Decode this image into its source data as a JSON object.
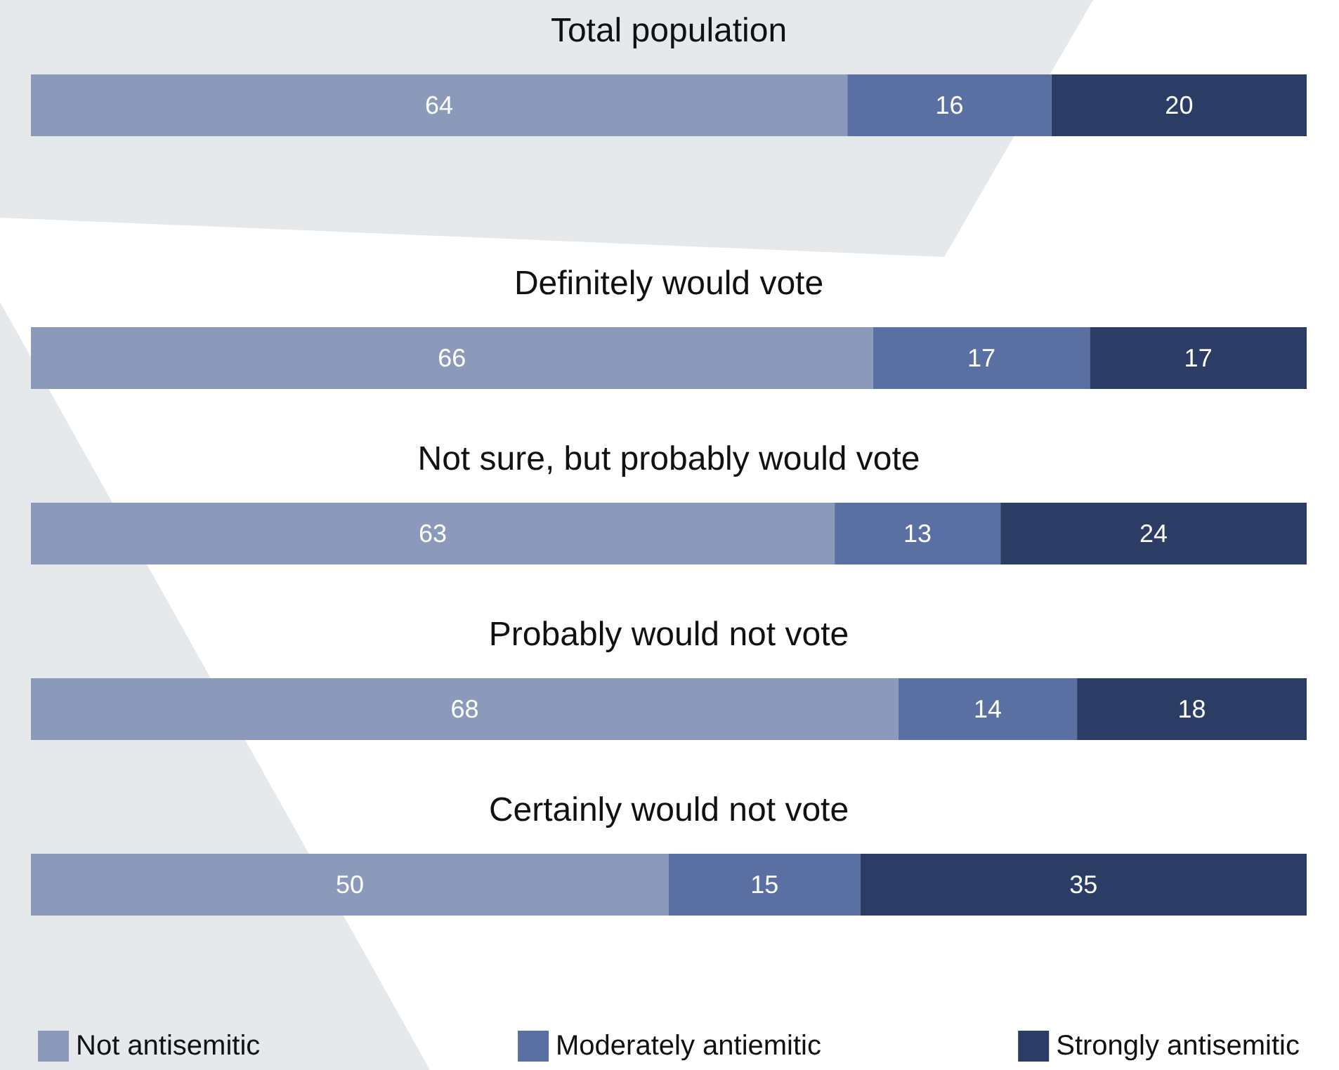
{
  "chart_data": {
    "type": "bar",
    "orientation": "horizontal",
    "stacked": true,
    "categories": [
      "Total population",
      "Definitely would vote",
      "Not sure, but probably would vote",
      "Probably would not vote",
      "Certainly would not vote"
    ],
    "series": [
      {
        "name": "Not antisemitic",
        "color": "#8b9aba",
        "values": [
          64,
          66,
          63,
          68,
          50
        ]
      },
      {
        "name": "Moderately antiemitic",
        "color": "#5a70a2",
        "values": [
          16,
          17,
          13,
          14,
          15
        ]
      },
      {
        "name": "Strongly antisemitic",
        "color": "#2b3d64",
        "values": [
          20,
          17,
          24,
          18,
          35
        ]
      }
    ],
    "xlim": [
      0,
      100
    ],
    "data_labels": true,
    "legend": "bottom",
    "tick_labels": "y"
  }
}
